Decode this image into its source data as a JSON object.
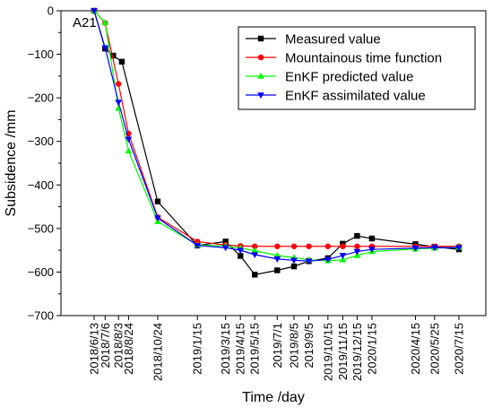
{
  "chart_data": {
    "type": "line",
    "panel_label": "A21",
    "xlabel": "Time /day",
    "ylabel": "Subsidence /mm",
    "ylim": [
      -700,
      0
    ],
    "yticks": [
      0,
      -100,
      -200,
      -300,
      -400,
      -500,
      -600,
      -700
    ],
    "x": [
      "2018/6/13",
      "2018/7/6",
      "2018/8/3",
      "2018/8/24",
      "2018/10/24",
      "2019/1/15",
      "2019/3/15",
      "2019/4/15",
      "2019/5/15",
      "2019/7/1",
      "2019/8/5",
      "2019/9/5",
      "2019/10/15",
      "2019/11/15",
      "2019/12/15",
      "2020/1/15",
      "2020/4/15",
      "2020/5/25",
      "2020/7/15"
    ],
    "legend_position": "top-right",
    "series": [
      {
        "name": "Measured value",
        "color": "#000000",
        "marker": "square",
        "points": [
          [
            "2018/6/13",
            0
          ],
          [
            "2018/7/6",
            -87
          ],
          [
            "2018/7/23",
            -103
          ],
          [
            "2018/8/10",
            -117
          ],
          [
            "2018/10/24",
            -438
          ],
          [
            "2019/1/15",
            -539
          ],
          [
            "2019/3/15",
            -530
          ],
          [
            "2019/4/15",
            -563
          ],
          [
            "2019/5/15",
            -606
          ],
          [
            "2019/7/1",
            -596
          ],
          [
            "2019/8/5",
            -587
          ],
          [
            "2019/9/5",
            -575
          ],
          [
            "2019/10/15",
            -568
          ],
          [
            "2019/11/15",
            -535
          ],
          [
            "2019/12/15",
            -517
          ],
          [
            "2020/1/15",
            -523
          ],
          [
            "2020/4/15",
            -536
          ],
          [
            "2020/5/25",
            -542
          ],
          [
            "2020/7/15",
            -548
          ]
        ]
      },
      {
        "name": "Mountainous time function",
        "color": "#ff0000",
        "marker": "circle",
        "points": [
          [
            "2018/6/13",
            0
          ],
          [
            "2018/7/6",
            -28
          ],
          [
            "2018/8/3",
            -168
          ],
          [
            "2018/8/24",
            -282
          ],
          [
            "2018/10/24",
            -474
          ],
          [
            "2019/1/15",
            -530
          ],
          [
            "2019/3/15",
            -538
          ],
          [
            "2019/4/15",
            -540
          ],
          [
            "2019/5/15",
            -541
          ],
          [
            "2019/7/1",
            -541
          ],
          [
            "2019/8/5",
            -541
          ],
          [
            "2019/9/5",
            -541
          ],
          [
            "2019/10/15",
            -541
          ],
          [
            "2019/11/15",
            -541
          ],
          [
            "2019/12/15",
            -541
          ],
          [
            "2020/1/15",
            -541
          ],
          [
            "2020/4/15",
            -541
          ],
          [
            "2020/5/25",
            -541
          ],
          [
            "2020/7/15",
            -541
          ]
        ]
      },
      {
        "name": "EnKF predicted value",
        "color": "#00ff00",
        "marker": "triangle-up",
        "points": [
          [
            "2018/6/13",
            0
          ],
          [
            "2018/7/6",
            -27
          ],
          [
            "2018/8/3",
            -224
          ],
          [
            "2018/8/24",
            -322
          ],
          [
            "2018/10/24",
            -484
          ],
          [
            "2019/1/15",
            -538
          ],
          [
            "2019/3/15",
            -540
          ],
          [
            "2019/4/15",
            -545
          ],
          [
            "2019/5/15",
            -551
          ],
          [
            "2019/7/1",
            -562
          ],
          [
            "2019/8/5",
            -567
          ],
          [
            "2019/9/5",
            -572
          ],
          [
            "2019/10/15",
            -574
          ],
          [
            "2019/11/15",
            -572
          ],
          [
            "2019/12/15",
            -562
          ],
          [
            "2020/1/15",
            -553
          ],
          [
            "2020/4/15",
            -547
          ],
          [
            "2020/5/25",
            -545
          ],
          [
            "2020/7/15",
            -543
          ]
        ]
      },
      {
        "name": "EnKF assimilated value",
        "color": "#0000ff",
        "marker": "triangle-down",
        "points": [
          [
            "2018/6/13",
            0
          ],
          [
            "2018/7/6",
            -85
          ],
          [
            "2018/8/3",
            -210
          ],
          [
            "2018/8/24",
            -295
          ],
          [
            "2018/10/24",
            -476
          ],
          [
            "2019/1/15",
            -539
          ],
          [
            "2019/3/15",
            -544
          ],
          [
            "2019/4/15",
            -550
          ],
          [
            "2019/5/15",
            -560
          ],
          [
            "2019/7/1",
            -570
          ],
          [
            "2019/8/5",
            -573
          ],
          [
            "2019/9/5",
            -575
          ],
          [
            "2019/10/15",
            -571
          ],
          [
            "2019/11/15",
            -562
          ],
          [
            "2019/12/15",
            -553
          ],
          [
            "2020/1/15",
            -548
          ],
          [
            "2020/4/15",
            -545
          ],
          [
            "2020/5/25",
            -544
          ],
          [
            "2020/7/15",
            -544
          ]
        ]
      }
    ]
  }
}
